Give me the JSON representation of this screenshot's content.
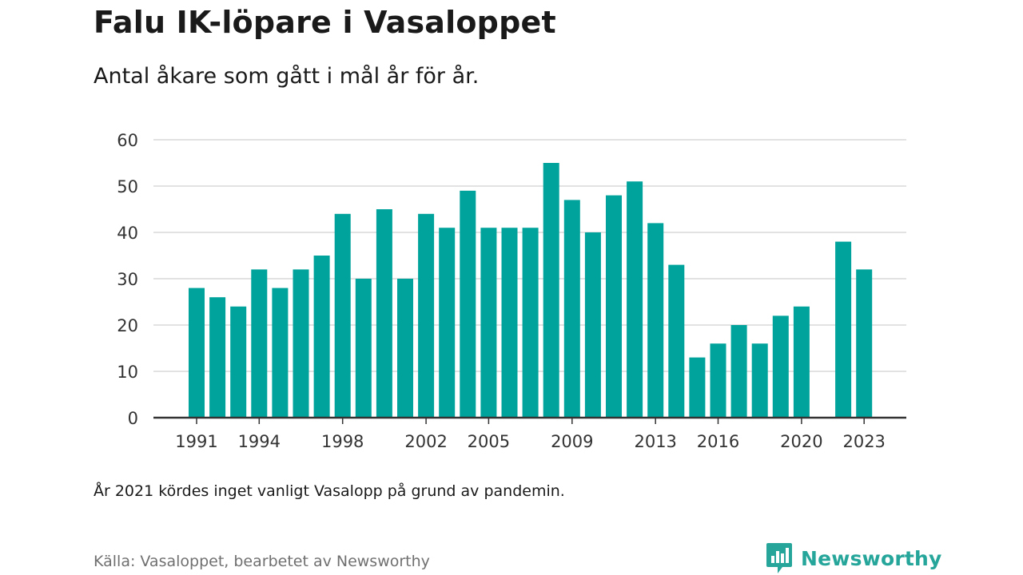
{
  "header": {
    "title": "Falu IK-löpare i Vasaloppet",
    "subtitle": "Antal åkare som gått i mål år för år."
  },
  "footer": {
    "note": "År 2021 kördes inget vanligt Vasalopp på grund av pandemin.",
    "source": "Källa: Vasaloppet, bearbetet av Newsworthy",
    "brand": "Newsworthy",
    "brand_icon": "newsworthy-logo-icon"
  },
  "colors": {
    "bar": "#00a39b",
    "grid": "#d9d9d9",
    "axis": "#333333",
    "brand": "#26a69a"
  },
  "chart_data": {
    "type": "bar",
    "title": "Falu IK-löpare i Vasaloppet",
    "subtitle": "Antal åkare som gått i mål år för år.",
    "xlabel": "",
    "ylabel": "",
    "ylim": [
      0,
      60
    ],
    "yticks": [
      0,
      10,
      20,
      30,
      40,
      50,
      60
    ],
    "xticks": [
      "1991",
      "1994",
      "1998",
      "2002",
      "2005",
      "2009",
      "2013",
      "2016",
      "2020",
      "2023"
    ],
    "grid": true,
    "categories": [
      "1991",
      "1992",
      "1993",
      "1994",
      "1995",
      "1996",
      "1997",
      "1998",
      "1999",
      "2000",
      "2001",
      "2002",
      "2003",
      "2004",
      "2005",
      "2006",
      "2007",
      "2008",
      "2009",
      "2010",
      "2011",
      "2012",
      "2013",
      "2014",
      "2015",
      "2016",
      "2017",
      "2018",
      "2019",
      "2020",
      "2021",
      "2022",
      "2023"
    ],
    "values": [
      28,
      26,
      24,
      32,
      28,
      32,
      35,
      44,
      30,
      45,
      30,
      44,
      41,
      49,
      41,
      41,
      41,
      55,
      47,
      40,
      48,
      51,
      42,
      33,
      13,
      16,
      20,
      16,
      22,
      24,
      null,
      38,
      32
    ]
  }
}
